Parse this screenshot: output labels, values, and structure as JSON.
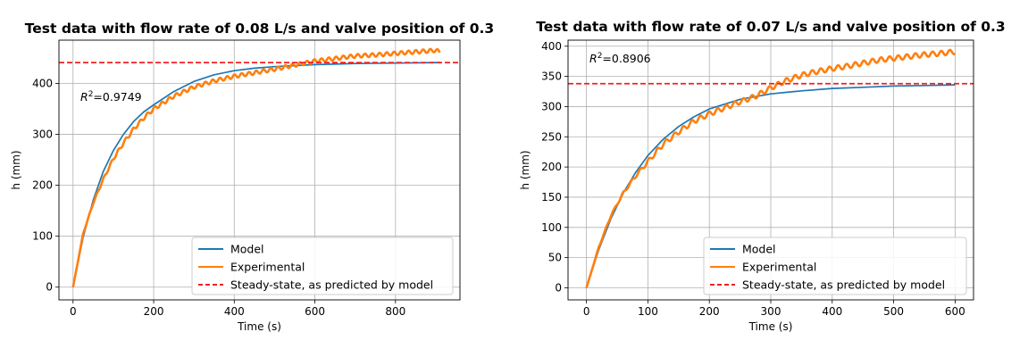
{
  "chart_data": [
    {
      "type": "line",
      "title": "Test data with flow rate of 0.08 L/s and valve position of 0.3",
      "xlabel": "Time (s)",
      "ylabel": "h (mm)",
      "xlim": [
        -35,
        960
      ],
      "ylim": [
        -25,
        485
      ],
      "xticks": [
        0,
        200,
        400,
        600,
        800
      ],
      "yticks": [
        0,
        100,
        200,
        300,
        400
      ],
      "grid": true,
      "legend_position": "lower-right",
      "annotation": {
        "prefix": "R",
        "sup": "2",
        "value": "=0.9749"
      },
      "series": [
        {
          "name": "Model",
          "color": "#1f77b4",
          "x": [
            0,
            25,
            50,
            75,
            100,
            125,
            150,
            175,
            200,
            250,
            300,
            350,
            400,
            450,
            500,
            550,
            600,
            700,
            800,
            910
          ],
          "y": [
            0,
            98,
            171,
            227,
            268,
            300,
            325,
            344,
            358,
            384,
            404,
            417,
            425,
            430,
            433,
            435,
            437,
            439,
            440,
            441
          ]
        },
        {
          "name": "Experimental",
          "color": "#ff7f0e",
          "x": [
            0,
            25,
            50,
            75,
            100,
            125,
            150,
            175,
            200,
            250,
            300,
            350,
            400,
            450,
            500,
            550,
            600,
            650,
            700,
            750,
            800,
            850,
            900,
            910
          ],
          "y": [
            0,
            105,
            165,
            212,
            252,
            283,
            310,
            332,
            350,
            375,
            393,
            405,
            414,
            421,
            428,
            436,
            444,
            449,
            454,
            456,
            459,
            462,
            465,
            462
          ],
          "wiggle_amplitude": 3.5,
          "wiggle_period": 18
        },
        {
          "name": "Steady-state, as predicted by model",
          "color": "#ee2222",
          "style": "dashed",
          "y_constant": 441
        }
      ]
    },
    {
      "type": "line",
      "title": "Test data with flow rate of 0.07 L/s and valve position of 0.3",
      "xlabel": "Time (s)",
      "ylabel": "h (mm)",
      "xlim": [
        -30,
        630
      ],
      "ylim": [
        -20,
        410
      ],
      "xticks": [
        0,
        100,
        200,
        300,
        400,
        500,
        600
      ],
      "yticks": [
        0,
        50,
        100,
        150,
        200,
        250,
        300,
        350,
        400
      ],
      "grid": true,
      "legend_position": "lower-right",
      "annotation": {
        "prefix": "R",
        "sup": "2",
        "value": "=0.8906"
      },
      "series": [
        {
          "name": "Model",
          "color": "#1f77b4",
          "x": [
            0,
            20,
            40,
            60,
            80,
            100,
            125,
            150,
            175,
            200,
            250,
            300,
            350,
            400,
            450,
            500,
            550,
            600
          ],
          "y": [
            0,
            63,
            115,
            157,
            191,
            219,
            246,
            267,
            283,
            296,
            312,
            321,
            326,
            330,
            332,
            334,
            335,
            336
          ]
        },
        {
          "name": "Experimental",
          "color": "#ff7f0e",
          "x": [
            0,
            20,
            40,
            60,
            80,
            100,
            125,
            150,
            175,
            200,
            225,
            250,
            275,
            300,
            325,
            350,
            375,
            400,
            425,
            450,
            475,
            500,
            525,
            550,
            575,
            600
          ],
          "y": [
            0,
            67,
            120,
            157,
            185,
            209,
            238,
            258,
            276,
            288,
            298,
            308,
            317,
            331,
            343,
            352,
            358,
            363,
            367,
            372,
            377,
            380,
            383,
            386,
            388,
            391
          ],
          "wiggle_amplitude": 4,
          "wiggle_period": 14
        },
        {
          "name": "Steady-state, as predicted by model",
          "color": "#ee2222",
          "style": "dashed",
          "y_constant": 338
        }
      ]
    }
  ]
}
